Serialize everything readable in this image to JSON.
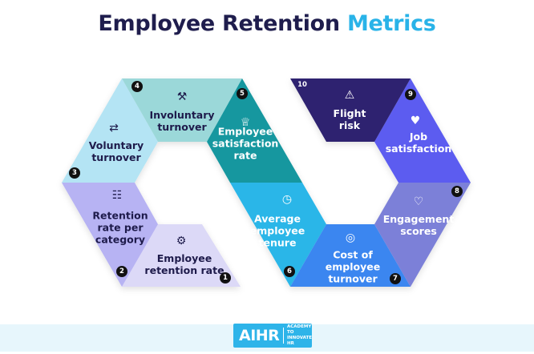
{
  "title": {
    "main": "Employee Retention",
    "accent": "Metrics"
  },
  "colors": {
    "title": "#1f1d4d",
    "accent": "#29b3e8"
  },
  "segments": [
    {
      "number": "1",
      "line1": "Employee",
      "line2": "retention rate",
      "line3": "",
      "icon": "gear-person-icon",
      "color": "#dcd9f7"
    },
    {
      "number": "2",
      "line1": "Retention",
      "line2": "rate per",
      "line3": "category",
      "icon": "list-icon",
      "color": "#b7b3f3"
    },
    {
      "number": "3",
      "line1": "Voluntary",
      "line2": "turnover",
      "line3": "",
      "icon": "people-exchange-icon",
      "color": "#b4e4f4"
    },
    {
      "number": "4",
      "line1": "Involuntary",
      "line2": "turnover",
      "line3": "",
      "icon": "gavel-icon",
      "color": "#9bd8d9"
    },
    {
      "number": "5",
      "line1": "Employee",
      "line2": "satisfaction",
      "line3": "rate",
      "icon": "trophy-icon",
      "color": "#12979f"
    },
    {
      "number": "6",
      "line1": "Average",
      "line2": "employee",
      "line3": "tenure",
      "icon": "clock-icon",
      "color": "#2ab6e8"
    },
    {
      "number": "7",
      "line1": "Cost of",
      "line2": "employee",
      "line3": "turnover",
      "icon": "hand-coin-icon",
      "color": "#3b86f0"
    },
    {
      "number": "8",
      "line1": "Engagement",
      "line2": "scores",
      "line3": "",
      "icon": "heart-handshake-icon",
      "color": "#7b80d8"
    },
    {
      "number": "9",
      "line1": "Job",
      "line2": "satisfaction",
      "line3": "",
      "icon": "hand-heart-icon",
      "color": "#5b5cf0"
    },
    {
      "number": "10",
      "line1": "Flight",
      "line2": "risk",
      "line3": "",
      "icon": "warning-icon",
      "color": "#2e2170"
    }
  ],
  "logo": {
    "name": "AIHR",
    "tagline1": "ACADEMY TO",
    "tagline2": "INNOVATE HR"
  }
}
